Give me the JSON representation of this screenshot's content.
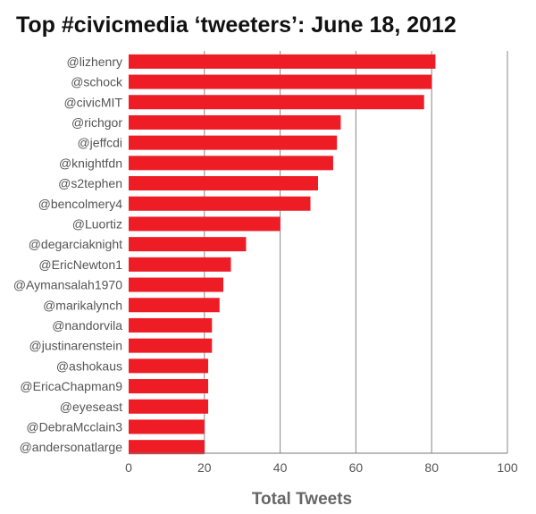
{
  "chart_data": {
    "type": "bar",
    "orientation": "horizontal",
    "title": "Top #civicmedia ‘tweeters’: June 18, 2012",
    "xlabel": "Total Tweets",
    "ylabel": "",
    "xlim": [
      0,
      100
    ],
    "xticks": [
      0,
      20,
      40,
      60,
      80,
      100
    ],
    "grid": "vertical lines",
    "legend": "none",
    "bar_color": "#ee1c25",
    "categories": [
      "@lizhenry",
      "@schock",
      "@civicMIT",
      "@richgor",
      "@jeffcdi",
      "@knightfdn",
      "@s2tephen",
      "@bencolmery4",
      "@Luortiz",
      "@degarciaknight",
      "@EricNewton1",
      "@Aymansalah1970",
      "@marikalynch",
      "@nandorvila",
      "@justinarenstein",
      "@ashokaus",
      "@EricaChapman9",
      "@eyeseast",
      "@DebraMcclain3",
      "@andersonatlarge"
    ],
    "values": [
      81,
      80,
      78,
      56,
      55,
      54,
      50,
      48,
      40,
      31,
      27,
      25,
      24,
      22,
      22,
      21,
      21,
      21,
      20,
      20
    ]
  }
}
